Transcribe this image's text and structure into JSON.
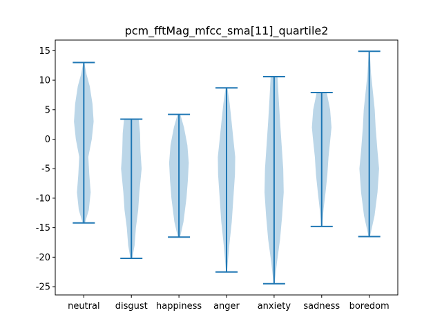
{
  "chart_data": {
    "type": "violin",
    "title": "pcm_fftMag_mfcc_sma[11]_quartile2",
    "xlabel": "",
    "ylabel": "",
    "ylim": [
      -26.4,
      16.8
    ],
    "yticks": [
      15,
      10,
      5,
      0,
      -5,
      -10,
      -15,
      -20,
      -25
    ],
    "categories": [
      "neutral",
      "disgust",
      "happiness",
      "anger",
      "anxiety",
      "sadness",
      "boredom"
    ],
    "series": [
      {
        "name": "neutral",
        "min": -14.2,
        "max": 13.0,
        "density": [
          [
            -14.2,
            0.05
          ],
          [
            -12,
            0.22
          ],
          [
            -9,
            0.3
          ],
          [
            -6,
            0.24
          ],
          [
            -3,
            0.2
          ],
          [
            0,
            0.35
          ],
          [
            3,
            0.43
          ],
          [
            6,
            0.38
          ],
          [
            9,
            0.26
          ],
          [
            11,
            0.12
          ],
          [
            13.0,
            0.02
          ]
        ]
      },
      {
        "name": "disgust",
        "min": -20.2,
        "max": 3.4,
        "density": [
          [
            -20.2,
            0.04
          ],
          [
            -18,
            0.14
          ],
          [
            -15,
            0.2
          ],
          [
            -12,
            0.3
          ],
          [
            -9,
            0.35
          ],
          [
            -5,
            0.45
          ],
          [
            -2,
            0.4
          ],
          [
            1,
            0.38
          ],
          [
            3.4,
            0.32
          ]
        ]
      },
      {
        "name": "happiness",
        "min": -16.6,
        "max": 4.2,
        "density": [
          [
            -16.6,
            0.05
          ],
          [
            -14,
            0.2
          ],
          [
            -10,
            0.33
          ],
          [
            -7,
            0.39
          ],
          [
            -4,
            0.43
          ],
          [
            -1,
            0.37
          ],
          [
            2,
            0.22
          ],
          [
            4.2,
            0.06
          ]
        ]
      },
      {
        "name": "anger",
        "min": -22.5,
        "max": 8.7,
        "density": [
          [
            -22.5,
            0.02
          ],
          [
            -18,
            0.12
          ],
          [
            -14,
            0.23
          ],
          [
            -10,
            0.3
          ],
          [
            -6,
            0.37
          ],
          [
            -3,
            0.38
          ],
          [
            0,
            0.3
          ],
          [
            3,
            0.22
          ],
          [
            6,
            0.14
          ],
          [
            8.7,
            0.04
          ]
        ]
      },
      {
        "name": "anxiety",
        "min": -24.5,
        "max": 10.6,
        "density": [
          [
            -24.5,
            0.02
          ],
          [
            -21,
            0.12
          ],
          [
            -17,
            0.26
          ],
          [
            -13,
            0.35
          ],
          [
            -9,
            0.42
          ],
          [
            -5,
            0.4
          ],
          [
            -1,
            0.33
          ],
          [
            3,
            0.26
          ],
          [
            7,
            0.2
          ],
          [
            10.6,
            0.15
          ]
        ]
      },
      {
        "name": "sadness",
        "min": -14.8,
        "max": 7.9,
        "density": [
          [
            -14.8,
            0.02
          ],
          [
            -12,
            0.08
          ],
          [
            -9,
            0.17
          ],
          [
            -6,
            0.25
          ],
          [
            -3,
            0.3
          ],
          [
            0,
            0.38
          ],
          [
            2,
            0.43
          ],
          [
            5,
            0.37
          ],
          [
            7.9,
            0.22
          ]
        ]
      },
      {
        "name": "boredom",
        "min": -16.5,
        "max": 14.9,
        "density": [
          [
            -16.5,
            0.03
          ],
          [
            -13,
            0.23
          ],
          [
            -9,
            0.36
          ],
          [
            -5,
            0.43
          ],
          [
            -2,
            0.36
          ],
          [
            2,
            0.28
          ],
          [
            5,
            0.24
          ],
          [
            8,
            0.16
          ],
          [
            11,
            0.08
          ],
          [
            14.9,
            0.02
          ]
        ]
      }
    ],
    "colors": {
      "body": "#1f77b4",
      "body_opacity": 0.3,
      "lines": "#1f77b4"
    },
    "grid": false
  }
}
